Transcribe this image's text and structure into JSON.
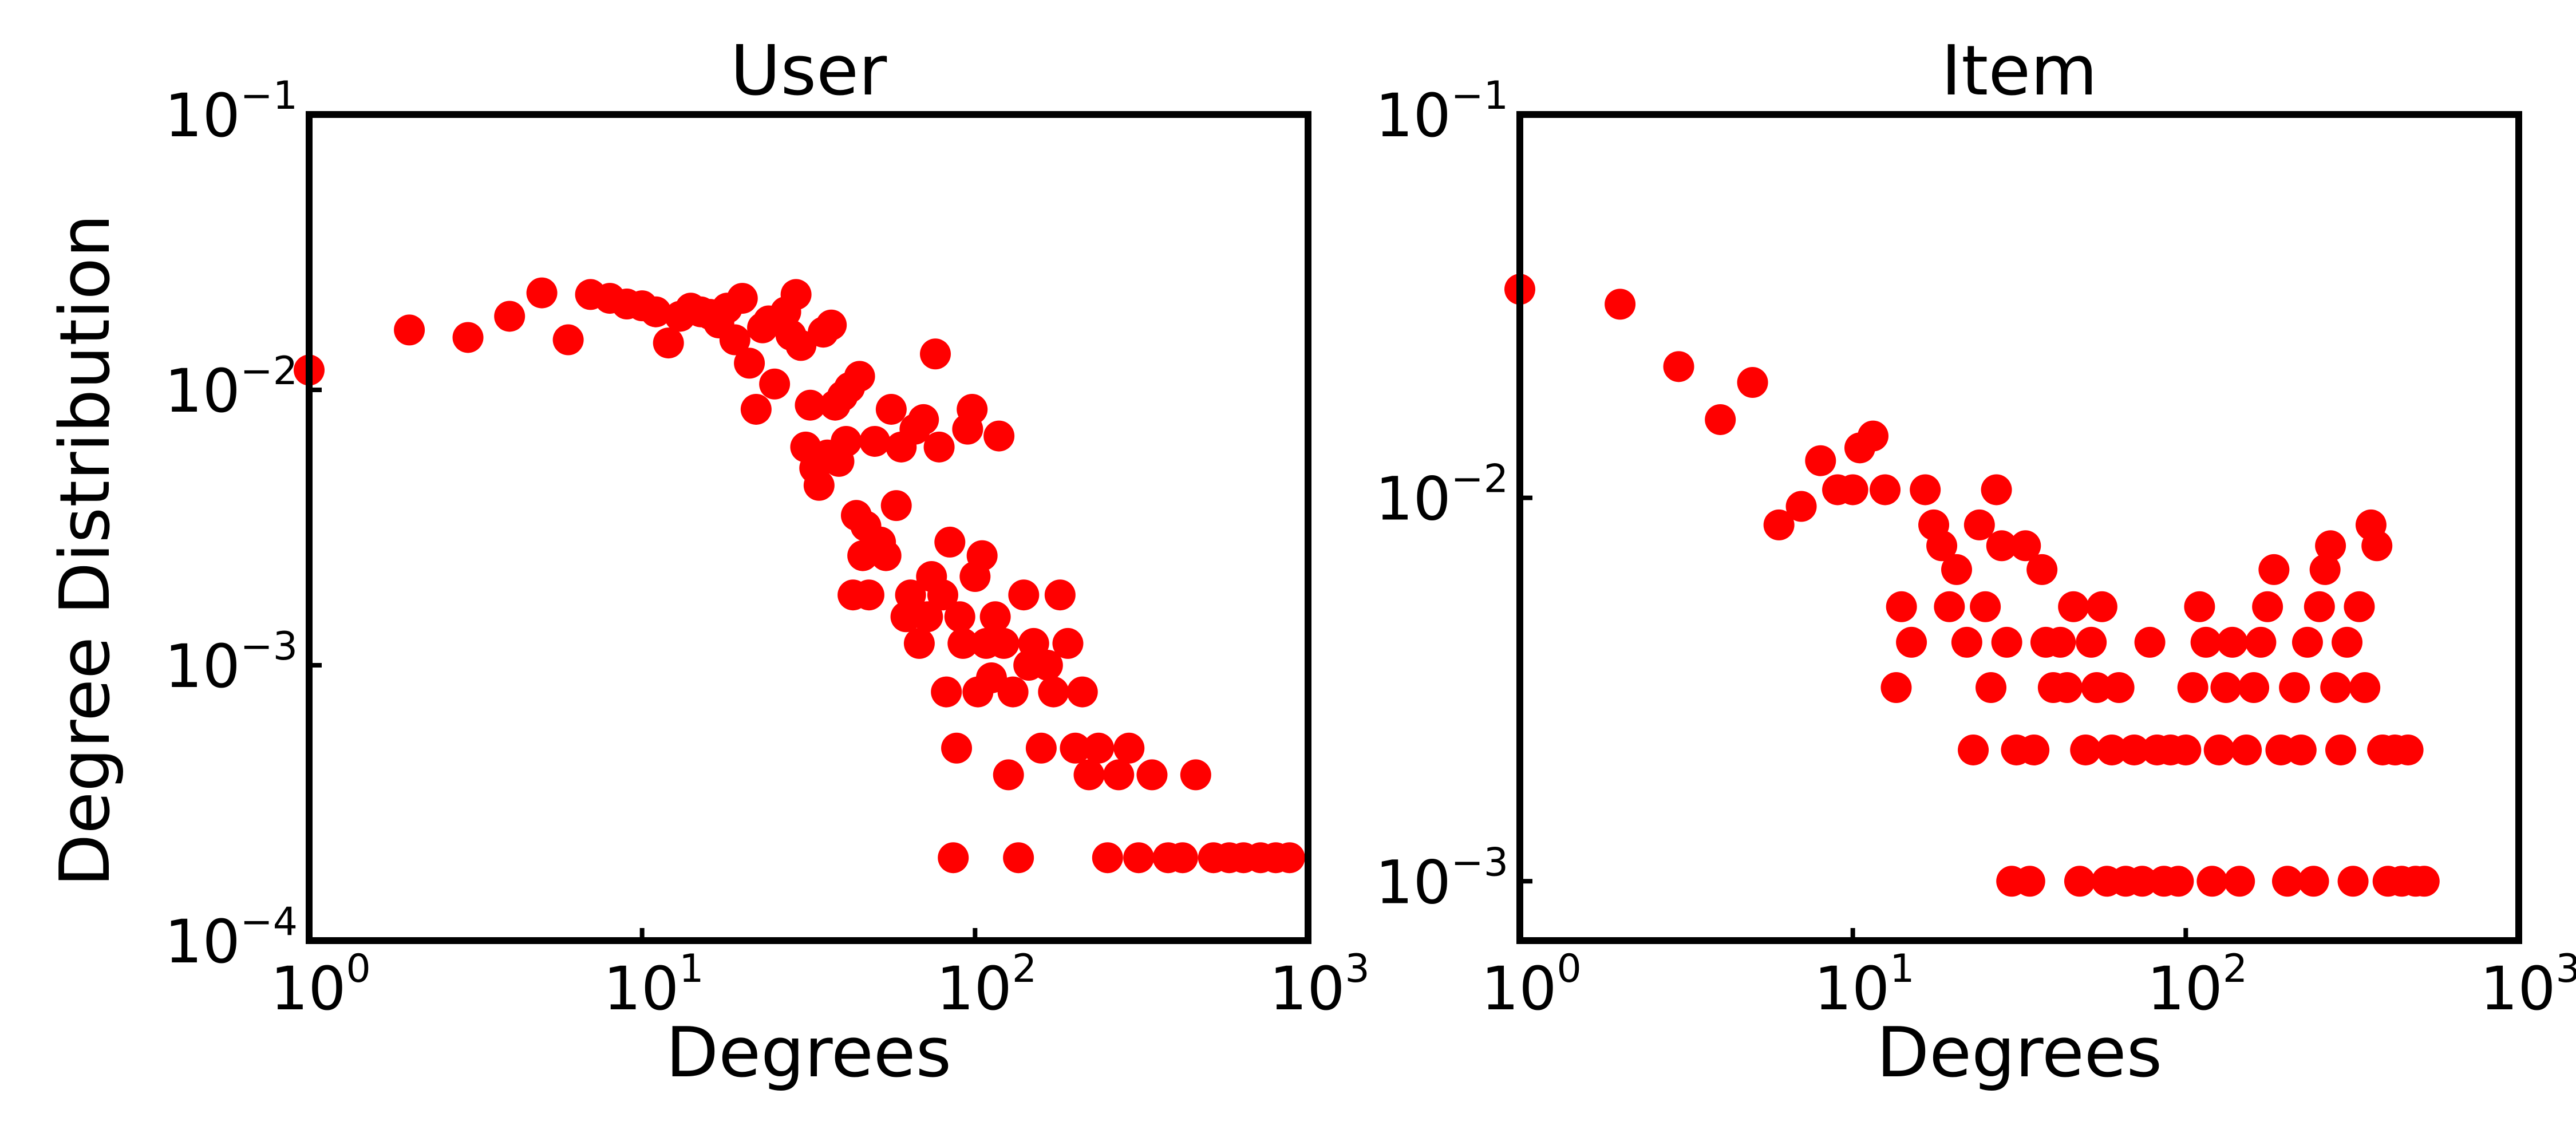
{
  "chart_data": [
    {
      "type": "scatter",
      "title": "User",
      "xlabel": "Degrees",
      "ylabel": "Degree Distribution",
      "xscale": "log",
      "yscale": "log",
      "xlim": [
        1,
        1000
      ],
      "ylim": [
        0.0001,
        0.1
      ],
      "xticks": [
        {
          "base": "10",
          "exp": "0"
        },
        {
          "base": "10",
          "exp": "1"
        },
        {
          "base": "10",
          "exp": "2"
        },
        {
          "base": "10",
          "exp": "3"
        }
      ],
      "yticks": [
        {
          "base": "10",
          "exp": "−1"
        },
        {
          "base": "10",
          "exp": "−2"
        },
        {
          "base": "10",
          "exp": "−3"
        },
        {
          "base": "10",
          "exp": "−4"
        }
      ],
      "xtick_values": [
        1,
        10,
        100,
        1000
      ],
      "ytick_values": [
        0.1,
        0.01,
        0.001,
        0.0001
      ],
      "grid": false,
      "marker_color": "#ff0000",
      "points": [
        [
          1,
          0.0118
        ],
        [
          2,
          0.0165
        ],
        [
          3,
          0.0155
        ],
        [
          4,
          0.0185
        ],
        [
          5,
          0.0225
        ],
        [
          6,
          0.0152
        ],
        [
          7,
          0.0222
        ],
        [
          8,
          0.0215
        ],
        [
          9,
          0.0205
        ],
        [
          10,
          0.0202
        ],
        [
          11,
          0.0192
        ],
        [
          12,
          0.0148
        ],
        [
          13,
          0.0185
        ],
        [
          14,
          0.0198
        ],
        [
          15,
          0.0192
        ],
        [
          16,
          0.0188
        ],
        [
          17,
          0.0175
        ],
        [
          18,
          0.0198
        ],
        [
          19,
          0.0152
        ],
        [
          20,
          0.0215
        ],
        [
          21,
          0.0125
        ],
        [
          22,
          0.0085
        ],
        [
          23,
          0.0168
        ],
        [
          24,
          0.0178
        ],
        [
          25,
          0.0105
        ],
        [
          26,
          0.0178
        ],
        [
          27,
          0.0192
        ],
        [
          28,
          0.0158
        ],
        [
          29,
          0.0222
        ],
        [
          30,
          0.0145
        ],
        [
          31,
          0.0062
        ],
        [
          32,
          0.0088
        ],
        [
          33,
          0.0052
        ],
        [
          34,
          0.0045
        ],
        [
          35,
          0.0162
        ],
        [
          36,
          0.0058
        ],
        [
          37,
          0.0172
        ],
        [
          38,
          0.0088
        ],
        [
          39,
          0.0055
        ],
        [
          40,
          0.0095
        ],
        [
          41,
          0.0065
        ],
        [
          42,
          0.0102
        ],
        [
          43,
          0.0018
        ],
        [
          44,
          0.0035
        ],
        [
          45,
          0.0112
        ],
        [
          46,
          0.0025
        ],
        [
          47,
          0.0032
        ],
        [
          48,
          0.0018
        ],
        [
          50,
          0.0065
        ],
        [
          52,
          0.0028
        ],
        [
          54,
          0.0025
        ],
        [
          56,
          0.0085
        ],
        [
          58,
          0.0038
        ],
        [
          60,
          0.0062
        ],
        [
          62,
          0.0015
        ],
        [
          64,
          0.0018
        ],
        [
          66,
          0.0072
        ],
        [
          68,
          0.0012
        ],
        [
          70,
          0.0078
        ],
        [
          72,
          0.0015
        ],
        [
          74,
          0.0021
        ],
        [
          76,
          0.0135
        ],
        [
          78,
          0.0062
        ],
        [
          80,
          0.0018
        ],
        [
          82,
          0.0008
        ],
        [
          84,
          0.0028
        ],
        [
          86,
          0.0002
        ],
        [
          88,
          0.0005
        ],
        [
          90,
          0.0015
        ],
        [
          92,
          0.0012
        ],
        [
          95,
          0.0072
        ],
        [
          98,
          0.0085
        ],
        [
          100,
          0.0021
        ],
        [
          102,
          0.0008
        ],
        [
          105,
          0.0025
        ],
        [
          108,
          0.0012
        ],
        [
          112,
          0.0009
        ],
        [
          115,
          0.0015
        ],
        [
          118,
          0.0068
        ],
        [
          122,
          0.0012
        ],
        [
          126,
          0.0004
        ],
        [
          130,
          0.0008
        ],
        [
          135,
          0.0002
        ],
        [
          140,
          0.0018
        ],
        [
          145,
          0.001
        ],
        [
          150,
          0.0012
        ],
        [
          158,
          0.0005
        ],
        [
          165,
          0.001
        ],
        [
          172,
          0.0008
        ],
        [
          180,
          0.0018
        ],
        [
          190,
          0.0012
        ],
        [
          200,
          0.0005
        ],
        [
          210,
          0.0008
        ],
        [
          220,
          0.0004
        ],
        [
          235,
          0.0005
        ],
        [
          250,
          0.0002
        ],
        [
          270,
          0.0004
        ],
        [
          290,
          0.0005
        ],
        [
          310,
          0.0002
        ],
        [
          340,
          0.0004
        ],
        [
          380,
          0.0002
        ],
        [
          420,
          0.0002
        ],
        [
          460,
          0.0004
        ],
        [
          520,
          0.0002
        ],
        [
          580,
          0.0002
        ],
        [
          640,
          0.0002
        ],
        [
          720,
          0.0002
        ],
        [
          800,
          0.0002
        ],
        [
          880,
          0.0002
        ]
      ]
    },
    {
      "type": "scatter",
      "title": "Item",
      "xlabel": "Degrees",
      "ylabel": "",
      "xscale": "log",
      "yscale": "log",
      "xlim": [
        1,
        1000
      ],
      "ylim": [
        0.0007,
        0.1
      ],
      "xticks": [
        {
          "base": "10",
          "exp": "0"
        },
        {
          "base": "10",
          "exp": "1"
        },
        {
          "base": "10",
          "exp": "2"
        },
        {
          "base": "10",
          "exp": "3"
        }
      ],
      "yticks": [
        {
          "base": "10",
          "exp": "−1"
        },
        {
          "base": "10",
          "exp": "−2"
        },
        {
          "base": "10",
          "exp": "−3"
        }
      ],
      "xtick_values": [
        1,
        10,
        100,
        1000
      ],
      "ytick_values": [
        0.1,
        0.01,
        0.001
      ],
      "grid": false,
      "marker_color": "#ff0000",
      "points": [
        [
          1,
          0.035
        ],
        [
          2,
          0.032
        ],
        [
          3,
          0.022
        ],
        [
          4,
          0.016
        ],
        [
          5,
          0.02
        ],
        [
          6,
          0.0085
        ],
        [
          7,
          0.0095
        ],
        [
          8,
          0.0125
        ],
        [
          9,
          0.0105
        ],
        [
          10,
          0.0105
        ],
        [
          10.5,
          0.0135
        ],
        [
          11.5,
          0.0145
        ],
        [
          12.5,
          0.0105
        ],
        [
          13.5,
          0.0032
        ],
        [
          14,
          0.0052
        ],
        [
          15,
          0.0042
        ],
        [
          16.5,
          0.0105
        ],
        [
          17.5,
          0.0085
        ],
        [
          18.5,
          0.0075
        ],
        [
          19.5,
          0.0052
        ],
        [
          20.5,
          0.0065
        ],
        [
          22,
          0.0042
        ],
        [
          23,
          0.0022
        ],
        [
          24,
          0.0085
        ],
        [
          25,
          0.0052
        ],
        [
          26,
          0.0032
        ],
        [
          27,
          0.0105
        ],
        [
          28,
          0.0075
        ],
        [
          29,
          0.0042
        ],
        [
          30,
          0.001
        ],
        [
          31,
          0.0022
        ],
        [
          33,
          0.0075
        ],
        [
          34,
          0.001
        ],
        [
          35,
          0.0022
        ],
        [
          37,
          0.0065
        ],
        [
          38,
          0.0042
        ],
        [
          40,
          0.0032
        ],
        [
          42,
          0.0042
        ],
        [
          44,
          0.0032
        ],
        [
          46,
          0.0052
        ],
        [
          48,
          0.001
        ],
        [
          50,
          0.0022
        ],
        [
          52,
          0.0042
        ],
        [
          54,
          0.0032
        ],
        [
          56,
          0.0052
        ],
        [
          58,
          0.001
        ],
        [
          60,
          0.0022
        ],
        [
          63,
          0.0032
        ],
        [
          66,
          0.001
        ],
        [
          70,
          0.0022
        ],
        [
          74,
          0.001
        ],
        [
          78,
          0.0042
        ],
        [
          82,
          0.0022
        ],
        [
          86,
          0.001
        ],
        [
          90,
          0.0022
        ],
        [
          95,
          0.001
        ],
        [
          100,
          0.0022
        ],
        [
          105,
          0.0032
        ],
        [
          110,
          0.0052
        ],
        [
          115,
          0.0042
        ],
        [
          120,
          0.001
        ],
        [
          126,
          0.0022
        ],
        [
          132,
          0.0032
        ],
        [
          138,
          0.0042
        ],
        [
          145,
          0.001
        ],
        [
          152,
          0.0022
        ],
        [
          160,
          0.0032
        ],
        [
          168,
          0.0042
        ],
        [
          176,
          0.0052
        ],
        [
          184,
          0.0065
        ],
        [
          193,
          0.0022
        ],
        [
          202,
          0.001
        ],
        [
          212,
          0.0032
        ],
        [
          222,
          0.0022
        ],
        [
          232,
          0.0042
        ],
        [
          242,
          0.001
        ],
        [
          252,
          0.0052
        ],
        [
          262,
          0.0065
        ],
        [
          272,
          0.0075
        ],
        [
          282,
          0.0032
        ],
        [
          292,
          0.0022
        ],
        [
          305,
          0.0042
        ],
        [
          318,
          0.001
        ],
        [
          332,
          0.0052
        ],
        [
          345,
          0.0032
        ],
        [
          360,
          0.0085
        ],
        [
          375,
          0.0075
        ],
        [
          390,
          0.0022
        ],
        [
          405,
          0.001
        ],
        [
          425,
          0.0022
        ],
        [
          445,
          0.001
        ],
        [
          465,
          0.0022
        ],
        [
          490,
          0.001
        ],
        [
          520,
          0.001
        ]
      ]
    }
  ]
}
